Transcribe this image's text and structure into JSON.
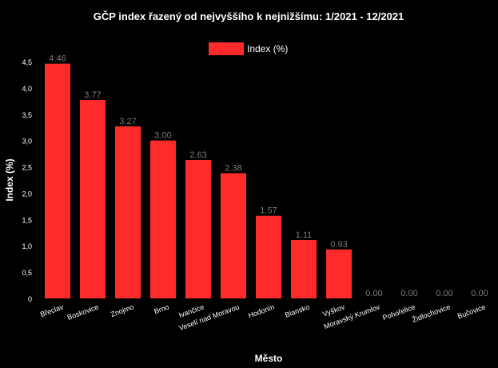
{
  "chart_data": {
    "type": "bar",
    "title": "GČP index řazený od nejvyššího k nejnižšímu: 1/2021 - 12/2021",
    "xlabel": "Město",
    "ylabel": "Index (%)",
    "ylim": [
      0,
      4.5
    ],
    "yticks": [
      "0",
      "0,5",
      "1,0",
      "1,5",
      "2,0",
      "2,5",
      "3,0",
      "3,5",
      "4,0",
      "4,5"
    ],
    "legend": {
      "label": "Index (%)",
      "position": "top-center"
    },
    "categories": [
      "Břeclav",
      "Boskovice",
      "Znojmo",
      "Brno",
      "Ivančice",
      "Veselí nad Moravou",
      "Hodonín",
      "Blansko",
      "Vyškov",
      "Moravský Krumlov",
      "Pohořelice",
      "Židlochovice",
      "Bučovice"
    ],
    "values": [
      4.46,
      3.77,
      3.27,
      3.0,
      2.63,
      2.38,
      1.57,
      1.11,
      0.93,
      0.0,
      0.0,
      0.0,
      0.0
    ],
    "data_labels": [
      "4.46",
      "3.77",
      "3.27",
      "3.00",
      "2.63",
      "2.38",
      "1.57",
      "1.11",
      "0.93",
      "0.00",
      "0.00",
      "0.00",
      "0.00"
    ],
    "colors": {
      "bar": "#ff2a2a",
      "background": "#000000",
      "text": "#ffffff",
      "data_label": "#7a7a7a"
    }
  }
}
